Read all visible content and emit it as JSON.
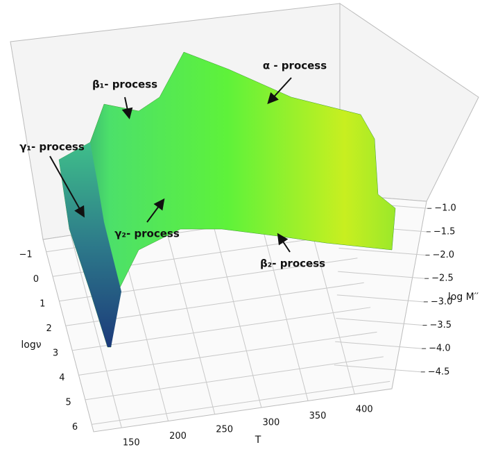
{
  "chart_data": {
    "type": "surface3d",
    "xlabel": "logν",
    "ylabel": "T",
    "zlabel": "log M′′",
    "xlim": [
      -1.5,
      6.3
    ],
    "xticks": [
      {
        "value": -1,
        "label": "−1"
      },
      0,
      1,
      2,
      3,
      4,
      5,
      6
    ],
    "ylim": [
      120,
      440
    ],
    "yticks": [
      150,
      200,
      250,
      300,
      350,
      400
    ],
    "zlim": [
      -4.8,
      -0.7
    ],
    "zticks": [
      {
        "value": -1.0,
        "label": "−1.0"
      },
      {
        "value": -1.5,
        "label": "−1.5"
      },
      {
        "value": -2.0,
        "label": "−2.0"
      },
      {
        "value": -2.5,
        "label": "−2.5"
      },
      {
        "value": -3.0,
        "label": "−3.0"
      },
      {
        "value": -3.5,
        "label": "−3.5"
      },
      {
        "value": -4.0,
        "label": "−4.0"
      },
      {
        "value": -4.5,
        "label": "−4.5"
      }
    ],
    "grid": true,
    "annotations": [
      "α - process",
      "β₁- process",
      "γ₁- process",
      "γ₂- process",
      "β₂- process"
    ]
  }
}
